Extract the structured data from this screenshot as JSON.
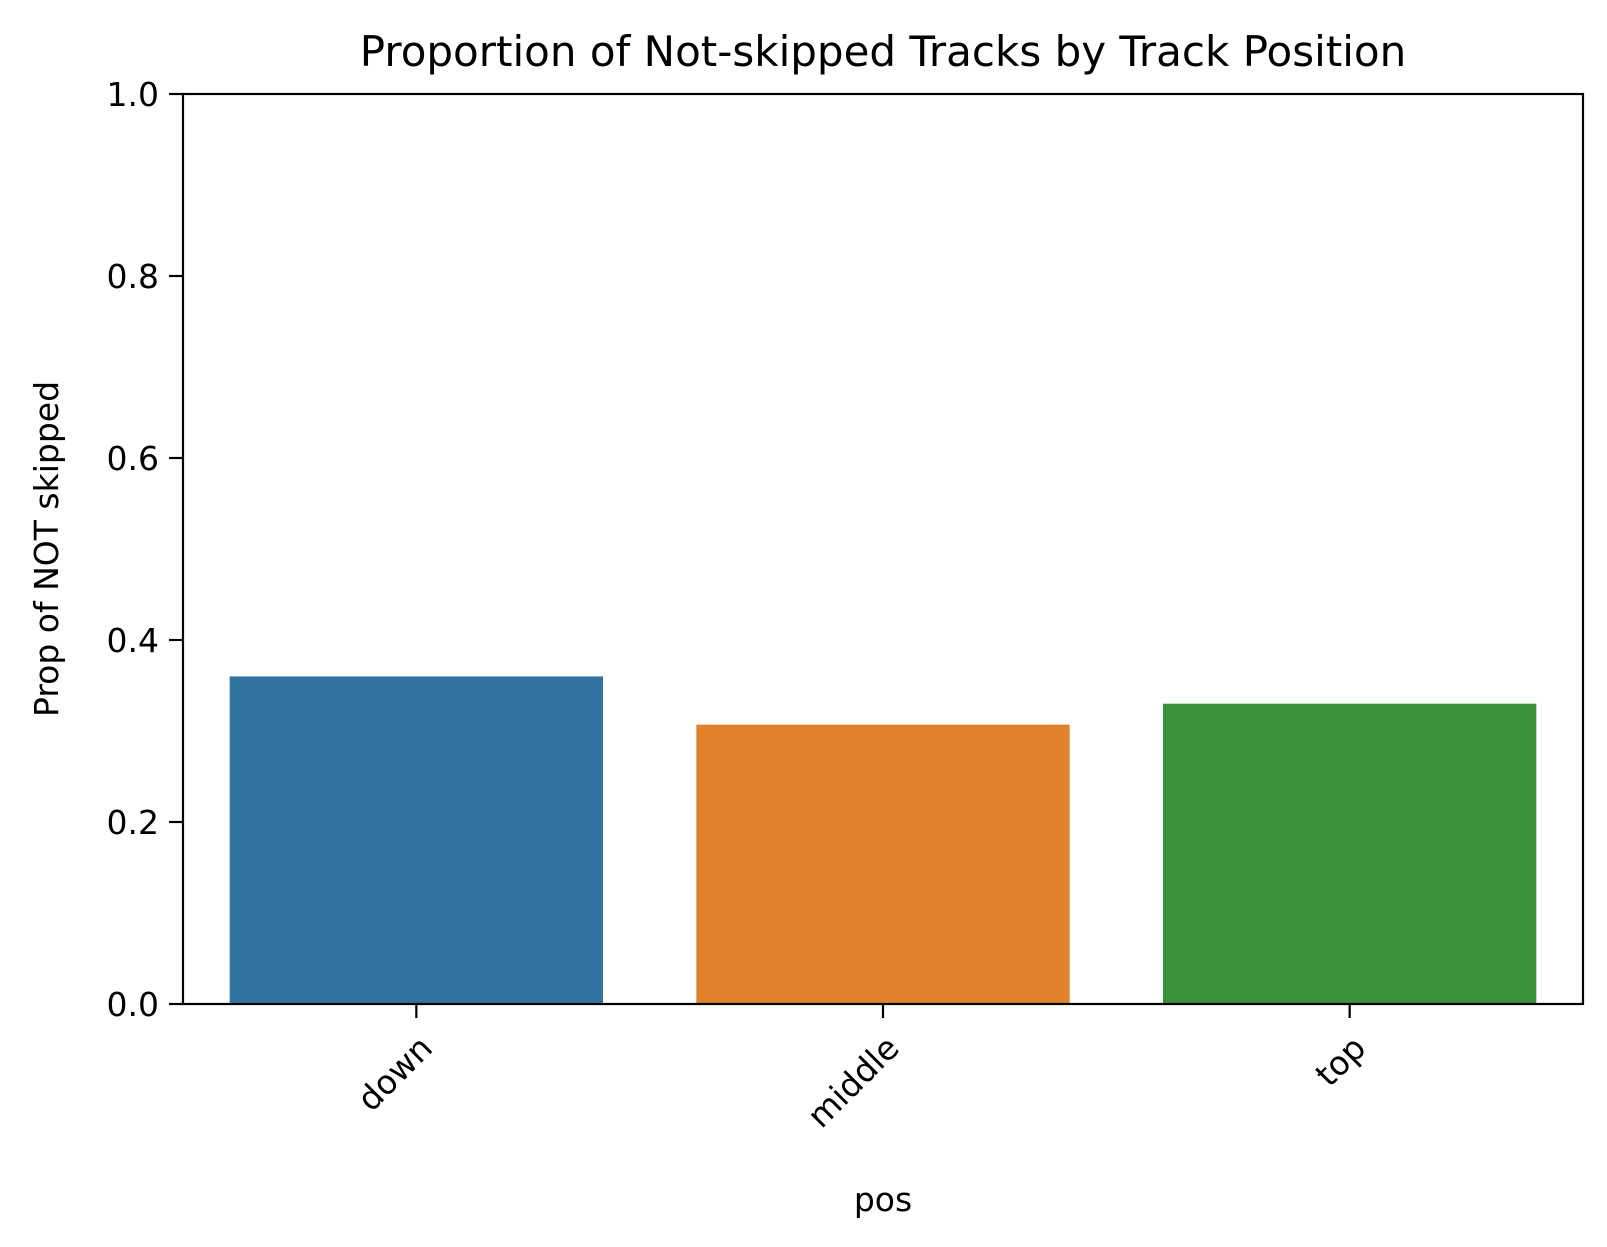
{
  "chart_data": {
    "type": "bar",
    "title": "Proportion of Not-skipped Tracks by Track Position",
    "xlabel": "pos",
    "ylabel": "Prop of NOT skipped",
    "categories": [
      "down",
      "middle",
      "top"
    ],
    "values": [
      0.36,
      0.307,
      0.33
    ],
    "colors": [
      "#3274a1",
      "#e1812c",
      "#3a923a"
    ],
    "ylim": [
      0,
      1.0
    ],
    "yticks": [
      0.0,
      0.2,
      0.4,
      0.6,
      0.8,
      1.0
    ],
    "ytick_labels": [
      "0.0",
      "0.2",
      "0.4",
      "0.6",
      "0.8",
      "1.0"
    ],
    "xtick_rotation_deg": 45,
    "grid": false,
    "legend": "none"
  }
}
